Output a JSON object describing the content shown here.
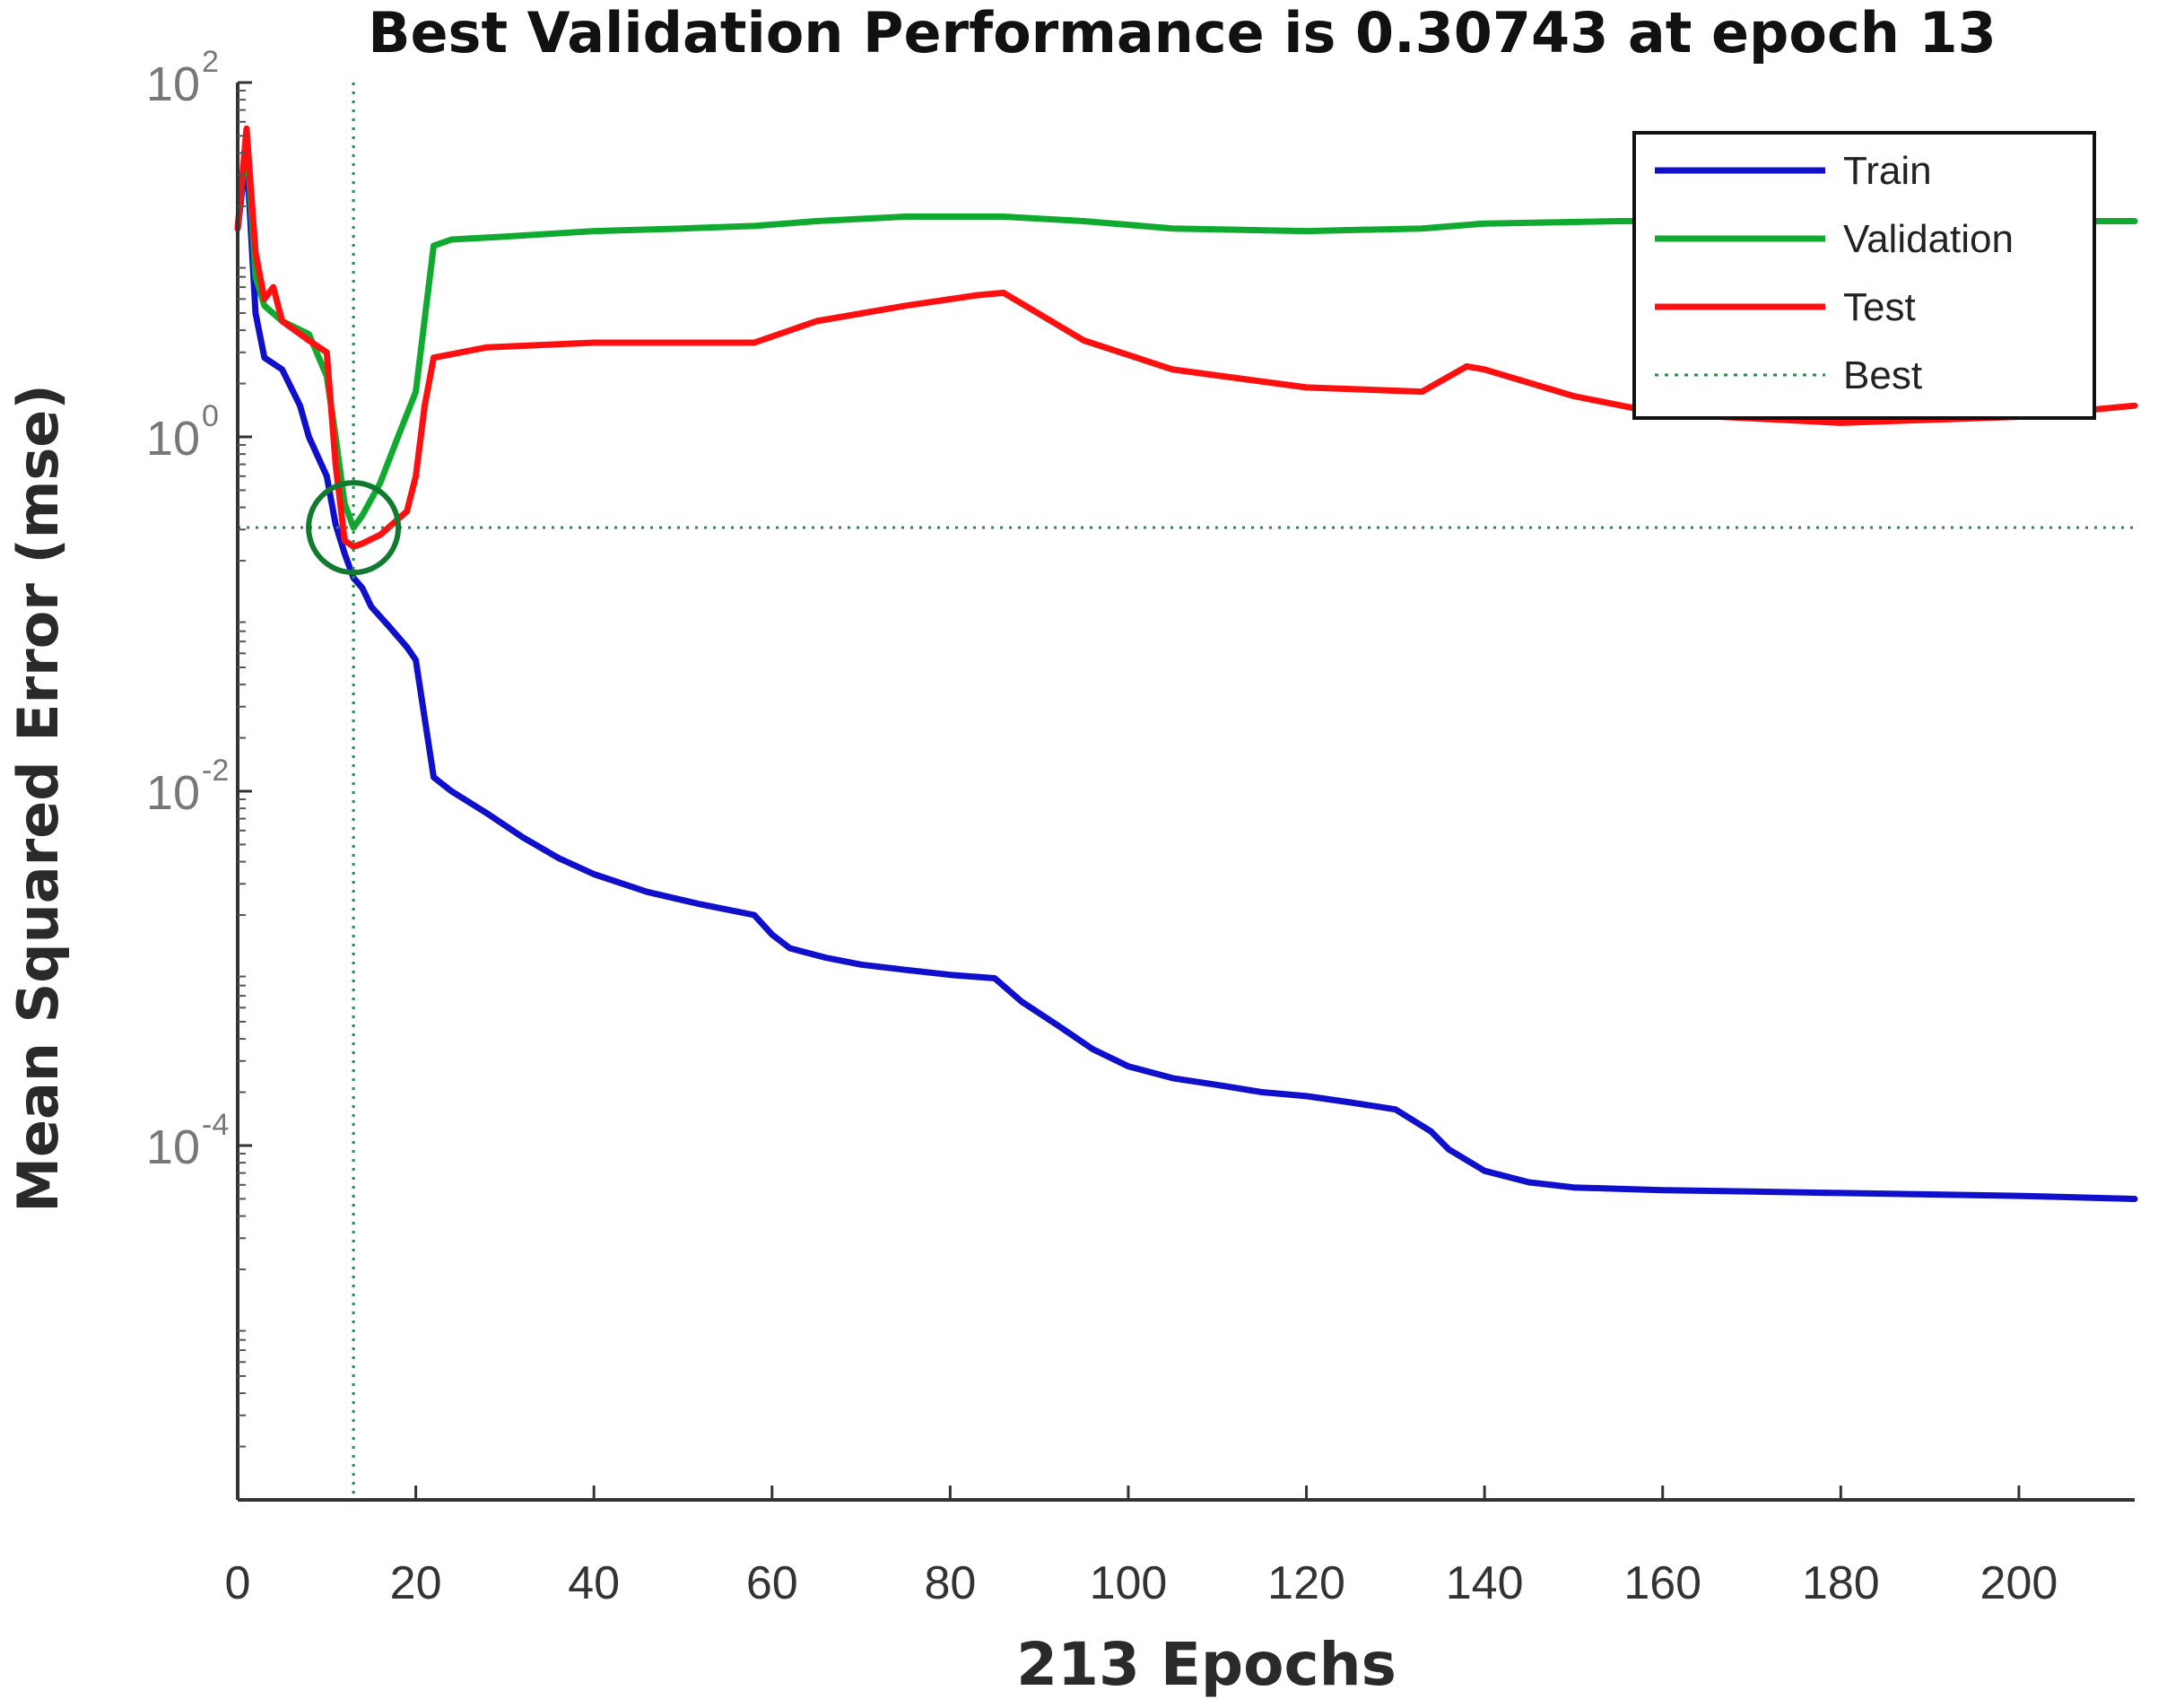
{
  "chart_data": {
    "type": "line",
    "title": "Best Validation Performance is 0.30743 at epoch 13",
    "xlabel": "213 Epochs",
    "ylabel": "Mean Squared Error  (mse)",
    "yscale": "log",
    "xlim": [
      0,
      213
    ],
    "ylim": [
      1e-06,
      100
    ],
    "x_ticks": [
      0,
      20,
      40,
      60,
      80,
      100,
      120,
      140,
      160,
      180,
      200
    ],
    "y_ticks": [
      {
        "base": "10",
        "exp": "2",
        "value": 100
      },
      {
        "base": "10",
        "exp": "0",
        "value": 1
      },
      {
        "base": "10",
        "exp": "-2",
        "value": 0.01
      },
      {
        "base": "10",
        "exp": "-4",
        "value": 0.0001
      }
    ],
    "legend": {
      "position": "top-right",
      "entries": [
        {
          "label": "Train",
          "color": "#1010cc",
          "style": "solid"
        },
        {
          "label": "Validation",
          "color": "#10aa30",
          "style": "solid"
        },
        {
          "label": "Test",
          "color": "#ff1010",
          "style": "solid"
        },
        {
          "label": "Best",
          "color": "#2a8a4a",
          "style": "dotted"
        }
      ]
    },
    "best": {
      "epoch": 13,
      "value": 0.30743,
      "color": "#107a30"
    },
    "series": [
      {
        "name": "Train",
        "color": "#1010cc",
        "x": [
          0,
          1,
          2,
          3,
          5,
          7,
          8,
          10,
          11,
          12,
          13,
          14,
          15,
          17,
          19,
          20,
          22,
          24,
          28,
          32,
          36,
          40,
          46,
          52,
          58,
          60,
          62,
          66,
          70,
          75,
          80,
          85,
          88,
          92,
          96,
          100,
          105,
          110,
          115,
          120,
          125,
          130,
          134,
          136,
          140,
          145,
          150,
          155,
          160,
          170,
          180,
          190,
          200,
          213
        ],
        "y": [
          15,
          40,
          5,
          2.8,
          2.4,
          1.5,
          1.0,
          0.6,
          0.32,
          0.22,
          0.16,
          0.14,
          0.11,
          0.085,
          0.065,
          0.055,
          0.012,
          0.01,
          0.0075,
          0.0055,
          0.0042,
          0.0034,
          0.0027,
          0.0023,
          0.002,
          0.00155,
          0.0013,
          0.00115,
          0.00105,
          0.00098,
          0.00092,
          0.00088,
          0.00065,
          0.00048,
          0.00035,
          0.00028,
          0.00024,
          0.00022,
          0.0002,
          0.00019,
          0.000175,
          0.00016,
          0.00012,
          9.5e-05,
          7.2e-05,
          6.2e-05,
          5.8e-05,
          5.7e-05,
          5.6e-05,
          5.5e-05,
          5.4e-05,
          5.3e-05,
          5.2e-05,
          5e-05
        ]
      },
      {
        "name": "Validation",
        "color": "#10aa30",
        "x": [
          0,
          1,
          2,
          3,
          5,
          8,
          10,
          11,
          12,
          13,
          14,
          16,
          18,
          20,
          22,
          24,
          30,
          40,
          50,
          58,
          65,
          75,
          86,
          95,
          105,
          120,
          133,
          140,
          155,
          170,
          190,
          213
        ],
        "y": [
          15,
          50,
          8,
          5.5,
          4.5,
          3.8,
          2.2,
          1.0,
          0.42,
          0.30743,
          0.36,
          0.55,
          1.0,
          1.8,
          12,
          13,
          13.5,
          14.5,
          15,
          15.5,
          16.5,
          17.5,
          17.5,
          16.5,
          15,
          14.5,
          15,
          16,
          16.5,
          16.5,
          16.5,
          16.5
        ]
      },
      {
        "name": "Test",
        "color": "#ff1010",
        "x": [
          0,
          1,
          2,
          3,
          4,
          5,
          8,
          10,
          11,
          12,
          13,
          14,
          16,
          19,
          20,
          21,
          22,
          28,
          40,
          58,
          65,
          75,
          83,
          86,
          95,
          105,
          120,
          133,
          138,
          140,
          150,
          160,
          180,
          200,
          213
        ],
        "y": [
          15,
          55,
          11,
          6,
          7,
          4.5,
          3.5,
          3.0,
          0.7,
          0.26,
          0.24,
          0.25,
          0.28,
          0.38,
          0.6,
          1.5,
          2.8,
          3.2,
          3.4,
          3.4,
          4.5,
          5.5,
          6.3,
          6.5,
          3.5,
          2.4,
          1.9,
          1.8,
          2.5,
          2.4,
          1.7,
          1.35,
          1.2,
          1.3,
          1.5
        ]
      }
    ]
  }
}
